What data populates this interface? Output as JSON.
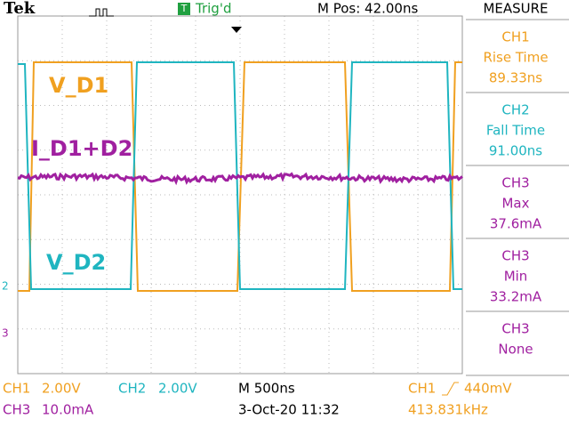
{
  "header": {
    "brand": "Tek",
    "trigger_icon": "T",
    "trigger_state": "Trig'd",
    "position": "M Pos: 42.00ns",
    "measure_title": "MEASURE"
  },
  "trace_labels": [
    "V_D1",
    "I_D1+D2",
    "V_D2"
  ],
  "channel_markers": [
    "2",
    "3"
  ],
  "measurements": [
    {
      "channel": "CH1",
      "label": "Rise Time",
      "value": "89.33ns"
    },
    {
      "channel": "CH2",
      "label": "Fall Time",
      "value": "91.00ns"
    },
    {
      "channel": "CH3",
      "label": "Max",
      "value": "37.6mA"
    },
    {
      "channel": "CH3",
      "label": "Min",
      "value": "33.2mA"
    },
    {
      "channel": "CH3",
      "label": "None"
    }
  ],
  "footer": {
    "ch1": "CH1",
    "ch1_scale": "2.00V",
    "ch2": "CH2",
    "ch2_scale": "2.00V",
    "ch3": "CH3",
    "ch3_scale": "10.0mA",
    "timebase": "M 500ns",
    "date": "3-Oct-20 11:32",
    "trigger_source": "CH1",
    "trigger_level": "440mV",
    "frequency": "413.831kHz"
  }
}
